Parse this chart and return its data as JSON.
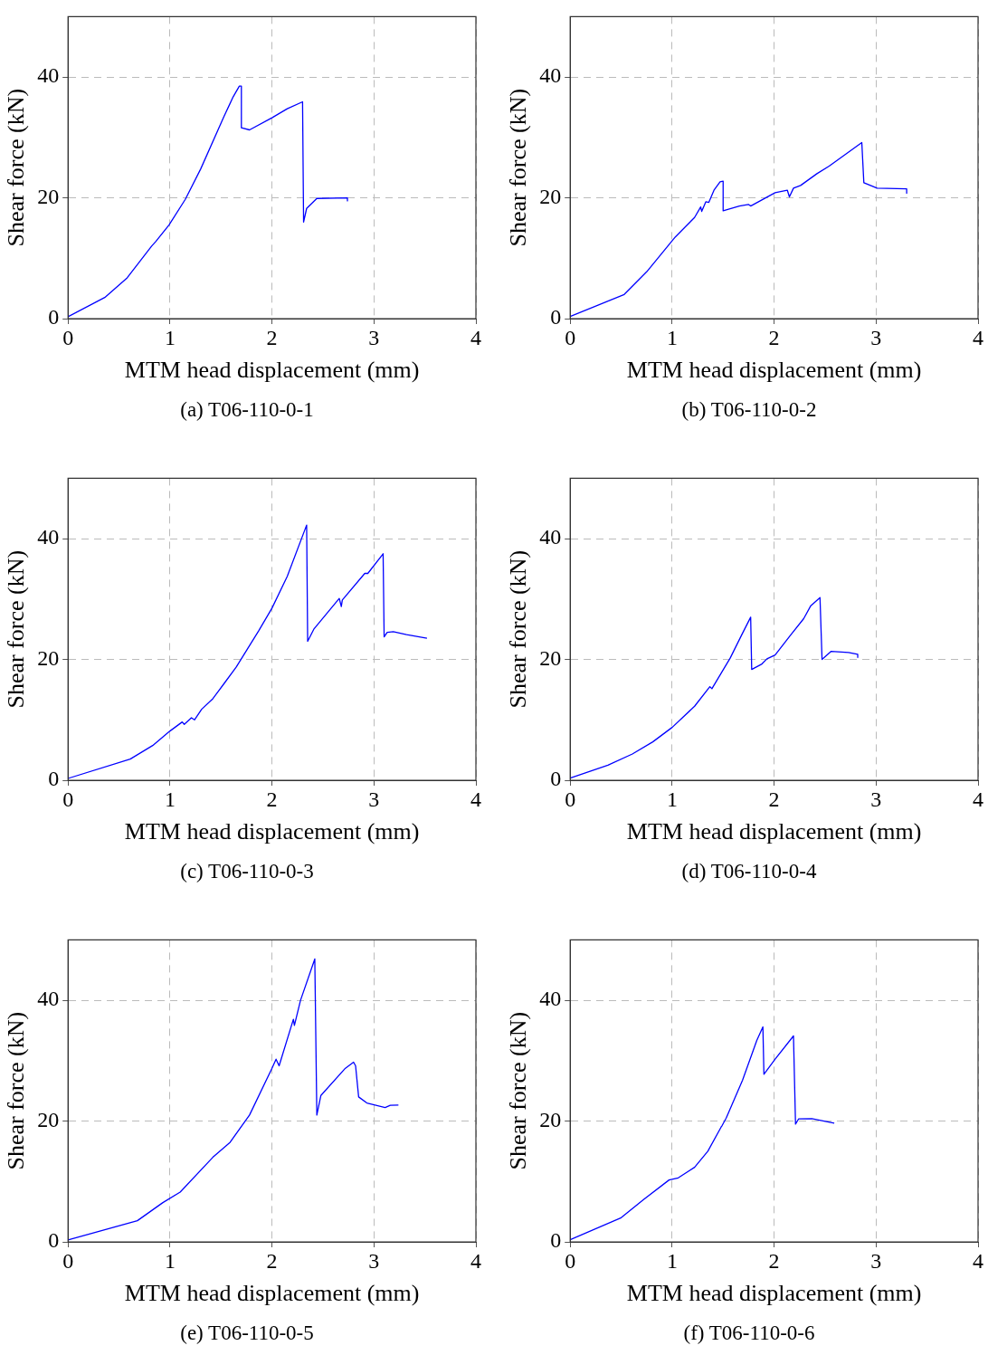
{
  "chart_data": [
    {
      "type": "line",
      "title": "(a) T06-110-0-1",
      "xlabel": "MTM head displacement (mm)",
      "ylabel": "Shear force (kN)",
      "xlim": [
        0,
        4
      ],
      "ylim": [
        0,
        50
      ],
      "xticks": [
        0,
        1,
        2,
        3,
        4
      ],
      "yticks": [
        0,
        20,
        40
      ],
      "grid": true,
      "marker": "none",
      "line_style": "solid",
      "x": [
        0,
        0.36,
        0.58,
        0.82,
        0.86,
        0.99,
        1.15,
        1.3,
        1.53,
        1.62,
        1.68,
        1.7,
        1.7,
        1.78,
        2.0,
        2.15,
        2.3,
        2.31,
        2.34,
        2.44,
        2.74,
        2.74
      ],
      "series": [
        {
          "color": "#0000ff",
          "values": [
            0.3,
            3.5,
            6.75,
            12,
            12.75,
            15.5,
            19.75,
            24.75,
            33.5,
            36.75,
            38.5,
            38.5,
            31.6,
            31.25,
            33.25,
            34.75,
            35.9,
            16,
            18.25,
            19.9,
            20,
            19.5
          ]
        }
      ]
    },
    {
      "type": "line",
      "title": "(b) T06-110-0-2",
      "xlabel": "MTM head displacement (mm)",
      "ylabel": "Shear force (kN)",
      "xlim": [
        0,
        4
      ],
      "ylim": [
        0,
        50
      ],
      "xticks": [
        0,
        1,
        2,
        3,
        4
      ],
      "yticks": [
        0,
        20,
        40
      ],
      "grid": true,
      "marker": "none",
      "line_style": "solid",
      "x": [
        0,
        0.53,
        0.75,
        1.03,
        1.22,
        1.28,
        1.29,
        1.33,
        1.36,
        1.41,
        1.47,
        1.5,
        1.5,
        1.66,
        1.75,
        1.77,
        2.01,
        2.13,
        2.15,
        2.19,
        2.26,
        2.42,
        2.54,
        2.86,
        2.88,
        3.01,
        3.3,
        3.3
      ],
      "series": [
        {
          "color": "#0000ff",
          "values": [
            0.35,
            4,
            7.75,
            13.5,
            16.75,
            18.5,
            17.75,
            19.35,
            19.25,
            21.25,
            22.65,
            22.75,
            17.85,
            18.65,
            18.9,
            18.65,
            20.85,
            21.25,
            20.15,
            21.6,
            22.05,
            24,
            25.25,
            29.15,
            22.5,
            21.6,
            21.5,
            20.75
          ]
        }
      ]
    },
    {
      "type": "line",
      "title": "(c) T06-110-0-3",
      "xlabel": "MTM head displacement (mm)",
      "ylabel": "Shear force (kN)",
      "xlim": [
        0,
        4
      ],
      "ylim": [
        0,
        50
      ],
      "xticks": [
        0,
        1,
        2,
        3,
        4
      ],
      "yticks": [
        0,
        20,
        40
      ],
      "grid": true,
      "marker": "none",
      "line_style": "solid",
      "x": [
        0,
        0.61,
        0.83,
        1.0,
        1.12,
        1.14,
        1.21,
        1.24,
        1.31,
        1.42,
        1.53,
        1.65,
        1.76,
        1.87,
        2.0,
        2.15,
        2.34,
        2.35,
        2.41,
        2.66,
        2.68,
        2.69,
        2.91,
        2.94,
        3.09,
        3.1,
        3.13,
        3.19,
        3.32,
        3.52
      ],
      "series": [
        {
          "color": "#0000ff",
          "values": [
            0.3,
            3.5,
            5.75,
            8.15,
            9.65,
            9.25,
            10.35,
            10,
            11.75,
            13.5,
            16,
            18.75,
            21.75,
            24.75,
            28.5,
            33.75,
            42.25,
            23,
            25,
            30.1,
            28.75,
            29.85,
            34.25,
            34.25,
            37.5,
            23.75,
            24.5,
            24.6,
            24.1,
            23.5
          ]
        }
      ]
    },
    {
      "type": "line",
      "title": "(d) T06-110-0-4",
      "xlabel": "MTM head displacement (mm)",
      "ylabel": "Shear force (kN)",
      "xlim": [
        0,
        4
      ],
      "ylim": [
        0,
        50
      ],
      "xticks": [
        0,
        1,
        2,
        3,
        4
      ],
      "yticks": [
        0,
        20,
        40
      ],
      "grid": true,
      "marker": "none",
      "line_style": "solid",
      "x": [
        0,
        0.37,
        0.61,
        0.81,
        1.0,
        1.22,
        1.37,
        1.39,
        1.57,
        1.68,
        1.77,
        1.78,
        1.88,
        1.93,
        2.01,
        2.16,
        2.29,
        2.36,
        2.45,
        2.47,
        2.56,
        2.73,
        2.82,
        2.82
      ],
      "series": [
        {
          "color": "#0000ff",
          "values": [
            0.35,
            2.5,
            4.35,
            6.35,
            8.75,
            12.25,
            15.5,
            15.15,
            20.25,
            24,
            27,
            18.35,
            19.25,
            20.1,
            20.75,
            24,
            26.75,
            28.9,
            30.25,
            20,
            21.35,
            21.15,
            20.85,
            20.35
          ]
        }
      ]
    },
    {
      "type": "line",
      "title": "(e) T06-110-0-5",
      "xlabel": "MTM head displacement (mm)",
      "ylabel": "Shear force (kN)",
      "xlim": [
        0,
        4
      ],
      "ylim": [
        0,
        50
      ],
      "xticks": [
        0,
        1,
        2,
        3,
        4
      ],
      "yticks": [
        0,
        20,
        40
      ],
      "grid": true,
      "marker": "none",
      "line_style": "solid",
      "x": [
        0,
        0.68,
        0.93,
        1.1,
        1.42,
        1.59,
        1.78,
        2.0,
        2.04,
        2.07,
        2.21,
        2.22,
        2.28,
        2.42,
        2.44,
        2.48,
        2.72,
        2.8,
        2.82,
        2.85,
        2.93,
        3.11,
        3.16,
        3.24
      ],
      "series": [
        {
          "color": "#0000ff",
          "values": [
            0.3,
            3.5,
            6.5,
            8.25,
            14,
            16.5,
            21,
            28.75,
            30.25,
            29.15,
            36.85,
            35.85,
            40,
            46.85,
            21,
            24.25,
            28.75,
            29.75,
            29.15,
            24,
            23,
            22.25,
            22.6,
            22.65
          ]
        }
      ]
    },
    {
      "type": "line",
      "title": "(f) T06-110-0-6",
      "xlabel": "MTM head displacement (mm)",
      "ylabel": "Shear force (kN)",
      "xlim": [
        0,
        4
      ],
      "ylim": [
        0,
        50
      ],
      "xticks": [
        0,
        1,
        2,
        3,
        4
      ],
      "yticks": [
        0,
        20,
        40
      ],
      "grid": true,
      "marker": "none",
      "line_style": "solid",
      "x": [
        0,
        0.5,
        0.72,
        0.97,
        1.06,
        1.22,
        1.35,
        1.48,
        1.49,
        1.53,
        1.69,
        1.83,
        1.89,
        1.9,
        2.01,
        2.19,
        2.21,
        2.24,
        2.37,
        2.59
      ],
      "series": [
        {
          "color": "#0000ff",
          "values": [
            0.35,
            4,
            7,
            10.25,
            10.6,
            12.35,
            15,
            19,
            19.25,
            20.5,
            26.75,
            33.35,
            35.6,
            27.75,
            30.25,
            34.1,
            19.5,
            20.35,
            20.4,
            19.65
          ]
        }
      ]
    }
  ]
}
